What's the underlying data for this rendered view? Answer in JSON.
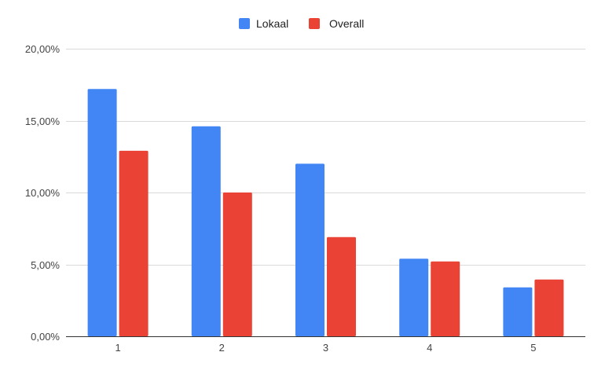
{
  "chart_data": {
    "type": "bar",
    "categories": [
      "1",
      "2",
      "3",
      "4",
      "5"
    ],
    "series": [
      {
        "name": "Lokaal",
        "values": [
          17.2,
          14.6,
          12.0,
          5.4,
          3.4
        ],
        "color": "#4285f4"
      },
      {
        "name": "Overall",
        "values": [
          12.9,
          10.0,
          6.9,
          5.2,
          3.95
        ],
        "color": "#ea4335"
      }
    ],
    "ylim": [
      0,
      20
    ],
    "yticks": [
      "0,00%",
      "5,00%",
      "10,00%",
      "15,00%",
      "20,00%"
    ],
    "ytick_values": [
      0,
      5,
      10,
      15,
      20
    ],
    "grid": true,
    "legend_position": "top-center"
  }
}
